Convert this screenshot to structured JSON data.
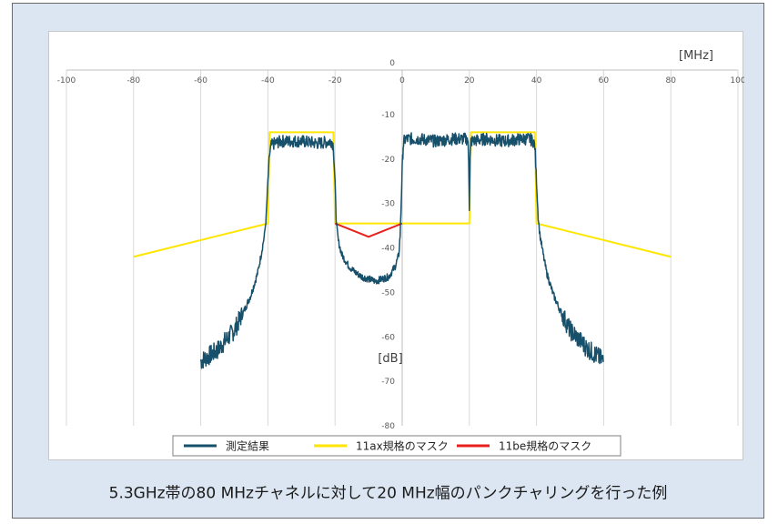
{
  "caption": "5.3GHz帯の80 MHzチャネルに対して20 MHz幅のパンクチャリングを行った例",
  "chart_data": {
    "type": "line",
    "xlabel": "[MHz]",
    "ylabel": "[dB]",
    "xlim": [
      -100,
      100
    ],
    "ylim": [
      -80,
      0
    ],
    "x_ticks": [
      "-100",
      "-80",
      "-60",
      "-40",
      "-20",
      "0",
      "20",
      "40",
      "60",
      "80",
      "100"
    ],
    "y_ticks": [
      "0",
      "-10",
      "-20",
      "-30",
      "-40",
      "-50",
      "-60",
      "-70",
      "-80"
    ],
    "grid": "vertical",
    "legend_position": "bottom",
    "series": [
      {
        "name": "測定結果",
        "color": "#17506b",
        "x": [
          -60,
          -55,
          -50,
          -47,
          -45,
          -43,
          -42,
          -41,
          -40.5,
          -40,
          -39.5,
          -39,
          -38,
          -36,
          -30,
          -25,
          -21,
          -20.5,
          -20,
          -19.7,
          -19.4,
          -19,
          -18,
          -16,
          -14,
          -12,
          -10,
          -8,
          -6,
          -4,
          -2,
          -1,
          -0.6,
          -0.3,
          0,
          0.3,
          0.6,
          1,
          2,
          5,
          10,
          15,
          19.5,
          19.8,
          20,
          20.2,
          20.5,
          25,
          30,
          36,
          38,
          39,
          39.5,
          40,
          40.5,
          41,
          42,
          43,
          45,
          47,
          50,
          55,
          60
        ],
        "y": [
          -65.5,
          -63,
          -58.5,
          -54,
          -50.5,
          -45.5,
          -41.5,
          -37,
          -33,
          -25,
          -19,
          -17,
          -16.5,
          -16,
          -16,
          -16.5,
          -16,
          -17,
          -25,
          -33,
          -36,
          -38.5,
          -41.5,
          -44,
          -45.5,
          -46.5,
          -47,
          -47.5,
          -47,
          -46.5,
          -44,
          -41.5,
          -37,
          -30,
          -22,
          -17,
          -16,
          -15.5,
          -15.5,
          -15.5,
          -16,
          -15.5,
          -15.5,
          -20,
          -31,
          -20,
          -16,
          -15.5,
          -16,
          -15.5,
          -15.5,
          -16,
          -17,
          -25,
          -33,
          -37,
          -41.5,
          -45.5,
          -50.5,
          -54,
          -58.5,
          -62.5,
          -65.5
        ]
      },
      {
        "name": "11ax規格のマスク",
        "color": "#ffe600",
        "x": [
          -80,
          -40,
          -39.5,
          -20.5,
          -20,
          20,
          20.5,
          39.5,
          40,
          80
        ],
        "y": [
          -42,
          -34.5,
          -14,
          -14,
          -34.5,
          -34.5,
          -14,
          -14,
          -34.5,
          -42
        ]
      },
      {
        "name": "11be規格のマスク",
        "color": "#e8201c",
        "x": [
          -20,
          -10,
          0
        ],
        "y": [
          -34.5,
          -37.5,
          -34.5
        ]
      }
    ]
  }
}
